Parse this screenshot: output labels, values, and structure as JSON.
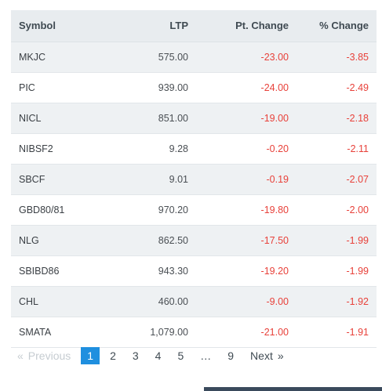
{
  "table": {
    "headers": {
      "symbol": "Symbol",
      "ltp": "LTP",
      "pt_change": "Pt. Change",
      "pct_change": "% Change"
    },
    "rows": [
      {
        "symbol": "MKJC",
        "ltp": "575.00",
        "pt_change": "-23.00",
        "pct_change": "-3.85"
      },
      {
        "symbol": "PIC",
        "ltp": "939.00",
        "pt_change": "-24.00",
        "pct_change": "-2.49"
      },
      {
        "symbol": "NICL",
        "ltp": "851.00",
        "pt_change": "-19.00",
        "pct_change": "-2.18"
      },
      {
        "symbol": "NIBSF2",
        "ltp": "9.28",
        "pt_change": "-0.20",
        "pct_change": "-2.11"
      },
      {
        "symbol": "SBCF",
        "ltp": "9.01",
        "pt_change": "-0.19",
        "pct_change": "-2.07"
      },
      {
        "symbol": "GBD80/81",
        "ltp": "970.20",
        "pt_change": "-19.80",
        "pct_change": "-2.00"
      },
      {
        "symbol": "NLG",
        "ltp": "862.50",
        "pt_change": "-17.50",
        "pct_change": "-1.99"
      },
      {
        "symbol": "SBIBD86",
        "ltp": "943.30",
        "pt_change": "-19.20",
        "pct_change": "-1.99"
      },
      {
        "symbol": "CHL",
        "ltp": "460.00",
        "pt_change": "-9.00",
        "pct_change": "-1.92"
      },
      {
        "symbol": "SMATA",
        "ltp": "1,079.00",
        "pt_change": "-21.00",
        "pct_change": "-1.91"
      }
    ]
  },
  "pagination": {
    "prev_arrow": "«",
    "previous": "Previous",
    "pages": [
      "1",
      "2",
      "3",
      "4",
      "5"
    ],
    "ellipsis": "…",
    "last_page": "9",
    "next": "Next",
    "next_arrow": "»",
    "active_page": "1"
  },
  "colors": {
    "negative": "#e8413a",
    "active_page_bg": "#1f8fdf",
    "header_bg": "#e8ecef"
  }
}
